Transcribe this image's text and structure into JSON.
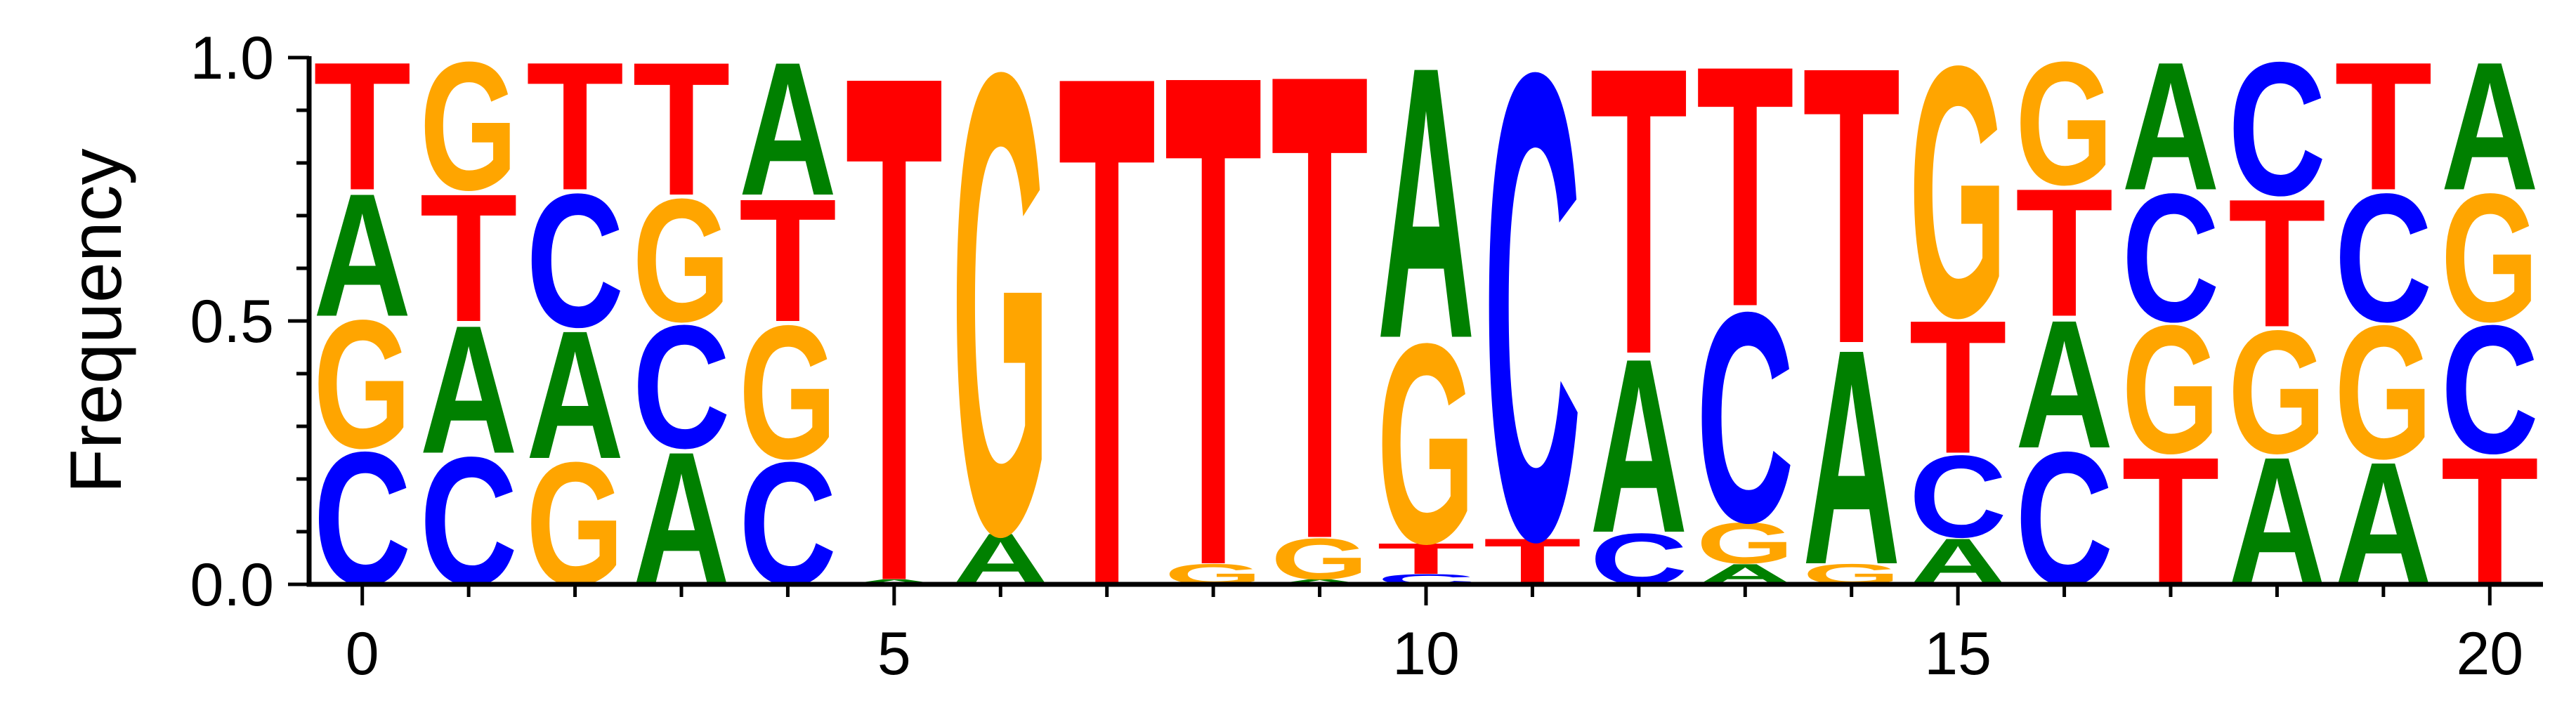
{
  "chart_data": {
    "type": "sequence_logo",
    "ylabel": "Frequency",
    "xlabel": "",
    "title": "",
    "ylim": [
      0,
      1.0
    ],
    "xlim": [
      -0.5,
      20.5
    ],
    "x_ticks": [
      "0",
      "5",
      "10",
      "15",
      "20"
    ],
    "y_ticks": [
      "0.0",
      "0.5",
      "1.0"
    ],
    "colors": {
      "A": "#008000",
      "C": "#0000ff",
      "G": "#ffa500",
      "T": "#ff0000"
    },
    "positions": [
      {
        "x": 0,
        "letters": [
          {
            "base": "C",
            "value": 0.26
          },
          {
            "base": "G",
            "value": 0.25
          },
          {
            "base": "A",
            "value": 0.24
          },
          {
            "base": "T",
            "value": 0.25
          }
        ]
      },
      {
        "x": 1,
        "letters": [
          {
            "base": "C",
            "value": 0.25
          },
          {
            "base": "A",
            "value": 0.25
          },
          {
            "base": "T",
            "value": 0.25
          },
          {
            "base": "G",
            "value": 0.25
          }
        ]
      },
      {
        "x": 2,
        "letters": [
          {
            "base": "G",
            "value": 0.24
          },
          {
            "base": "A",
            "value": 0.25
          },
          {
            "base": "C",
            "value": 0.26
          },
          {
            "base": "T",
            "value": 0.25
          }
        ]
      },
      {
        "x": 3,
        "letters": [
          {
            "base": "A",
            "value": 0.26
          },
          {
            "base": "C",
            "value": 0.24
          },
          {
            "base": "G",
            "value": 0.24
          },
          {
            "base": "T",
            "value": 0.26
          }
        ]
      },
      {
        "x": 4,
        "letters": [
          {
            "base": "C",
            "value": 0.24
          },
          {
            "base": "G",
            "value": 0.26
          },
          {
            "base": "T",
            "value": 0.24
          },
          {
            "base": "A",
            "value": 0.26
          }
        ]
      },
      {
        "x": 5,
        "letters": [
          {
            "base": "A",
            "value": 0.01
          },
          {
            "base": "T",
            "value": 0.99
          }
        ]
      },
      {
        "x": 6,
        "letters": [
          {
            "base": "A",
            "value": 0.1
          },
          {
            "base": "G",
            "value": 0.9
          }
        ]
      },
      {
        "x": 7,
        "letters": [
          {
            "base": "T",
            "value": 1.0
          }
        ]
      },
      {
        "x": 8,
        "letters": [
          {
            "base": "G",
            "value": 0.04
          },
          {
            "base": "T",
            "value": 0.96
          }
        ]
      },
      {
        "x": 9,
        "letters": [
          {
            "base": "A",
            "value": 0.01
          },
          {
            "base": "G",
            "value": 0.08
          },
          {
            "base": "T",
            "value": 0.91
          }
        ]
      },
      {
        "x": 10,
        "letters": [
          {
            "base": "C",
            "value": 0.02
          },
          {
            "base": "T",
            "value": 0.06
          },
          {
            "base": "G",
            "value": 0.39
          },
          {
            "base": "A",
            "value": 0.53
          }
        ]
      },
      {
        "x": 11,
        "letters": [
          {
            "base": "T",
            "value": 0.09
          },
          {
            "base": "C",
            "value": 0.91
          }
        ]
      },
      {
        "x": 12,
        "letters": [
          {
            "base": "C",
            "value": 0.1
          },
          {
            "base": "A",
            "value": 0.34
          },
          {
            "base": "T",
            "value": 0.56
          }
        ]
      },
      {
        "x": 13,
        "letters": [
          {
            "base": "A",
            "value": 0.04
          },
          {
            "base": "G",
            "value": 0.08
          },
          {
            "base": "C",
            "value": 0.41
          },
          {
            "base": "T",
            "value": 0.47
          }
        ]
      },
      {
        "x": 14,
        "letters": [
          {
            "base": "G",
            "value": 0.04
          },
          {
            "base": "A",
            "value": 0.42
          },
          {
            "base": "T",
            "value": 0.54
          }
        ]
      },
      {
        "x": 15,
        "letters": [
          {
            "base": "A",
            "value": 0.09
          },
          {
            "base": "C",
            "value": 0.16
          },
          {
            "base": "T",
            "value": 0.26
          },
          {
            "base": "G",
            "value": 0.49
          }
        ]
      },
      {
        "x": 16,
        "letters": [
          {
            "base": "C",
            "value": 0.26
          },
          {
            "base": "A",
            "value": 0.25
          },
          {
            "base": "T",
            "value": 0.25
          },
          {
            "base": "G",
            "value": 0.24
          }
        ]
      },
      {
        "x": 17,
        "letters": [
          {
            "base": "T",
            "value": 0.25
          },
          {
            "base": "G",
            "value": 0.25
          },
          {
            "base": "C",
            "value": 0.25
          },
          {
            "base": "A",
            "value": 0.25
          }
        ]
      },
      {
        "x": 18,
        "letters": [
          {
            "base": "A",
            "value": 0.25
          },
          {
            "base": "G",
            "value": 0.24
          },
          {
            "base": "T",
            "value": 0.25
          },
          {
            "base": "C",
            "value": 0.26
          }
        ]
      },
      {
        "x": 19,
        "letters": [
          {
            "base": "A",
            "value": 0.24
          },
          {
            "base": "G",
            "value": 0.26
          },
          {
            "base": "C",
            "value": 0.25
          },
          {
            "base": "T",
            "value": 0.25
          }
        ]
      },
      {
        "x": 20,
        "letters": [
          {
            "base": "T",
            "value": 0.25
          },
          {
            "base": "C",
            "value": 0.25
          },
          {
            "base": "G",
            "value": 0.25
          },
          {
            "base": "A",
            "value": 0.25
          }
        ]
      }
    ]
  }
}
